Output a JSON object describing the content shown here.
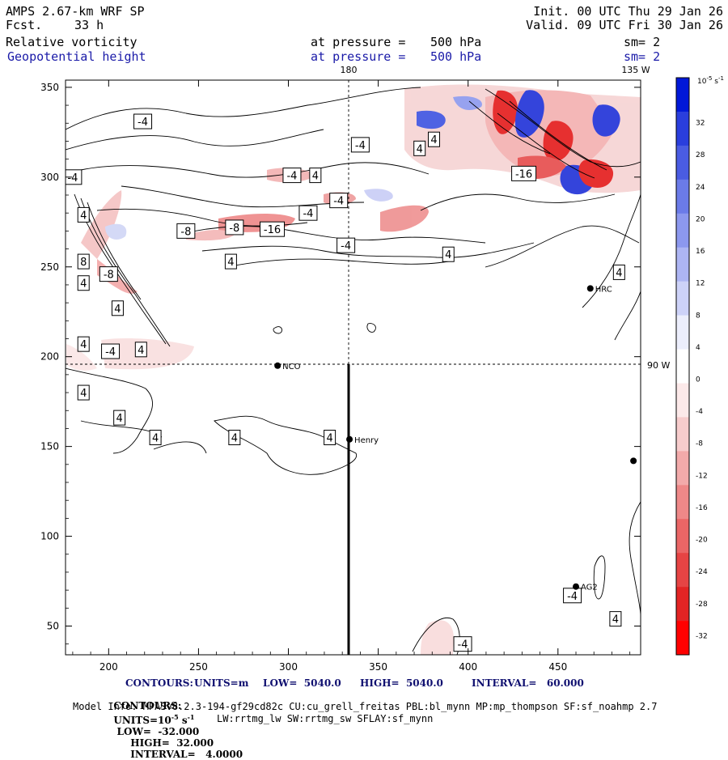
{
  "header": {
    "model": "AMPS 2.67-km WRF SP",
    "fcst_label": "Fcst.",
    "fcst_value": "33 h",
    "init": "Init. 00 UTC Thu 29 Jan 26",
    "valid": "Valid. 09 UTC Fri 30 Jan 26",
    "field1": {
      "name": "Relative vorticity",
      "level_label": "at pressure =",
      "level_value": "500 hPa",
      "smooth": "sm= 2"
    },
    "field2": {
      "name": "Geopotential height",
      "level_label": "at pressure =",
      "level_value": "500 hPa",
      "smooth": "sm= 2"
    }
  },
  "map": {
    "meridian_top_label": "180",
    "meridian_135_label": "135 W",
    "meridian_90_label": "90 W",
    "stations": [
      {
        "name": "HRC",
        "x": 468,
        "y": 238
      },
      {
        "name": "NCO",
        "x": 294,
        "y": 195
      },
      {
        "name": "Henry",
        "x": 334,
        "y": 154
      },
      {
        "name": "AG2",
        "x": 460,
        "y": 72
      },
      {
        "name": "",
        "x": 492,
        "y": 142
      }
    ],
    "contour_labels": [
      {
        "t": "-4",
        "x": 219,
        "y": 331
      },
      {
        "t": "-4",
        "x": 180,
        "y": 300
      },
      {
        "t": "4",
        "x": 186,
        "y": 279
      },
      {
        "t": "-8",
        "x": 243,
        "y": 270
      },
      {
        "t": "-8",
        "x": 270,
        "y": 272
      },
      {
        "t": "-16",
        "x": 291,
        "y": 271
      },
      {
        "t": "-4",
        "x": 302,
        "y": 301
      },
      {
        "t": "4",
        "x": 315,
        "y": 301
      },
      {
        "t": "-4",
        "x": 311,
        "y": 280
      },
      {
        "t": "-4",
        "x": 328,
        "y": 287
      },
      {
        "t": "-4",
        "x": 340,
        "y": 318
      },
      {
        "t": "4",
        "x": 373,
        "y": 316
      },
      {
        "t": "4",
        "x": 381,
        "y": 321
      },
      {
        "t": "-4",
        "x": 332,
        "y": 262
      },
      {
        "t": "4",
        "x": 268,
        "y": 253
      },
      {
        "t": "4",
        "x": 389,
        "y": 257
      },
      {
        "t": "-16",
        "x": 431,
        "y": 302
      },
      {
        "t": "4",
        "x": 484,
        "y": 247
      },
      {
        "t": "8",
        "x": 186,
        "y": 253
      },
      {
        "t": "-8",
        "x": 200,
        "y": 246
      },
      {
        "t": "4",
        "x": 186,
        "y": 241
      },
      {
        "t": "4",
        "x": 205,
        "y": 227
      },
      {
        "t": "4",
        "x": 186,
        "y": 207
      },
      {
        "t": "-4",
        "x": 201,
        "y": 203
      },
      {
        "t": "4",
        "x": 218,
        "y": 204
      },
      {
        "t": "4",
        "x": 186,
        "y": 180
      },
      {
        "t": "4",
        "x": 206,
        "y": 166
      },
      {
        "t": "4",
        "x": 226,
        "y": 155
      },
      {
        "t": "4",
        "x": 270,
        "y": 155
      },
      {
        "t": "4",
        "x": 323,
        "y": 155
      },
      {
        "t": "-4",
        "x": 458,
        "y": 67
      },
      {
        "t": "4",
        "x": 482,
        "y": 54
      },
      {
        "t": "-4",
        "x": 397,
        "y": 40
      }
    ]
  },
  "chart_data": {
    "type": "heatmap",
    "title": "Relative vorticity / Geopotential height at 500 hPa",
    "x_axis": {
      "range": [
        176,
        496
      ],
      "ticks": [
        200,
        250,
        300,
        350,
        400,
        450
      ]
    },
    "y_axis": {
      "range": [
        34,
        354
      ],
      "ticks": [
        50,
        100,
        150,
        200,
        250,
        300,
        350
      ]
    },
    "colorbar": {
      "units": "10^-5 s^-1",
      "tick_labels": [
        "32",
        "28",
        "24",
        "20",
        "16",
        "12",
        "8",
        "4",
        "0",
        "-4",
        "-8",
        "-12",
        "-16",
        "-20",
        "-24",
        "-28",
        "-32"
      ],
      "bins_top_to_bottom": [
        "#0018d8",
        "#2a3edd",
        "#4a5ce2",
        "#6b7be8",
        "#8c98ee",
        "#adb5f3",
        "#cdd2f8",
        "#eceefc",
        "#ffffff",
        "#fce9e9",
        "#f7cccc",
        "#f2aaaa",
        "#ee8888",
        "#ea6666",
        "#e64444",
        "#e22424",
        "#ff0000"
      ]
    }
  },
  "footer": {
    "line1": {
      "label": "CONTOURS:",
      "units": "UNITS=m",
      "low": "LOW=  5040.0",
      "high": "HIGH=  5040.0",
      "interval": "INTERVAL=   60.000"
    },
    "line2": {
      "label": "CONTOURS:",
      "units": "UNITS=10",
      "units_exp": "-5",
      "units_tail": "s",
      "units_tail_exp": "-1",
      "low": "LOW=  -32.000",
      "high": "HIGH=  32.000",
      "interval": "INTERVAL=   4.0000"
    },
    "line3": "Model Info: MPASv8.2.3-194-gf29cd82c CU:cu_grell_freitas PBL:bl_mynn MP:mp_thompson SF:sf_noahmp 2.7",
    "line4": "LW:rrtmg_lw SW:rrtmg_sw SFLAY:sf_mynn"
  }
}
